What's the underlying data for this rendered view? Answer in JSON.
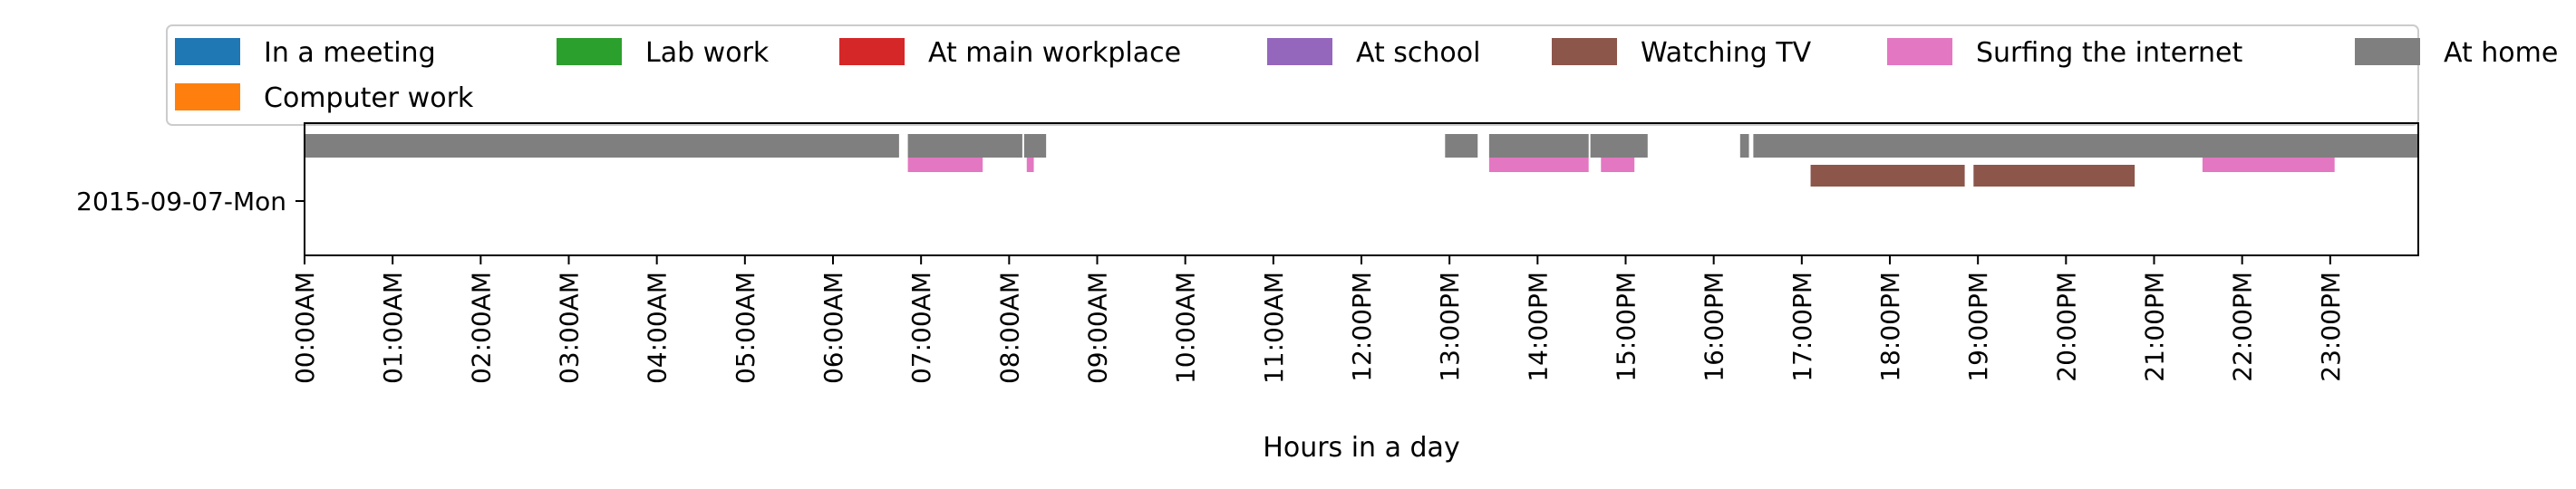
{
  "chart_data": {
    "type": "timeline",
    "title": "",
    "xlabel": "Hours in a day",
    "ylabel": "",
    "xlim": [
      0,
      24
    ],
    "row_label": "2015-09-07-Mon",
    "x_ticks": [
      {
        "value": 0,
        "label": "00:00AM"
      },
      {
        "value": 1,
        "label": "01:00AM"
      },
      {
        "value": 2,
        "label": "02:00AM"
      },
      {
        "value": 3,
        "label": "03:00AM"
      },
      {
        "value": 4,
        "label": "04:00AM"
      },
      {
        "value": 5,
        "label": "05:00AM"
      },
      {
        "value": 6,
        "label": "06:00AM"
      },
      {
        "value": 7,
        "label": "07:00AM"
      },
      {
        "value": 8,
        "label": "08:00AM"
      },
      {
        "value": 9,
        "label": "09:00AM"
      },
      {
        "value": 10,
        "label": "10:00AM"
      },
      {
        "value": 11,
        "label": "11:00AM"
      },
      {
        "value": 12,
        "label": "12:00PM"
      },
      {
        "value": 13,
        "label": "13:00PM"
      },
      {
        "value": 14,
        "label": "14:00PM"
      },
      {
        "value": 15,
        "label": "15:00PM"
      },
      {
        "value": 16,
        "label": "16:00PM"
      },
      {
        "value": 17,
        "label": "17:00PM"
      },
      {
        "value": 18,
        "label": "18:00PM"
      },
      {
        "value": 19,
        "label": "19:00PM"
      },
      {
        "value": 20,
        "label": "20:00PM"
      },
      {
        "value": 21,
        "label": "21:00PM"
      },
      {
        "value": 22,
        "label": "22:00PM"
      },
      {
        "value": 23,
        "label": "23:00PM"
      }
    ],
    "legend_placement": "top",
    "legend": [
      {
        "name": "In a meeting",
        "color": "#1f77b4"
      },
      {
        "name": "Lab work",
        "color": "#2ca02c"
      },
      {
        "name": "At main workplace",
        "color": "#d62728"
      },
      {
        "name": "At school",
        "color": "#9467bd"
      },
      {
        "name": "Watching TV",
        "color": "#8c564b"
      },
      {
        "name": "Surfing the internet",
        "color": "#e377c2"
      },
      {
        "name": "At home",
        "color": "#7f7f7f"
      },
      {
        "name": "Computer work",
        "color": "#ff7f0e"
      }
    ],
    "series": [
      {
        "name": "At home",
        "color": "#7f7f7f",
        "lane": 0,
        "intervals": [
          [
            0.0,
            6.75
          ],
          [
            6.85,
            8.15
          ],
          [
            8.17,
            8.42
          ],
          [
            12.95,
            13.32
          ],
          [
            13.45,
            14.58
          ],
          [
            14.6,
            15.25
          ],
          [
            16.3,
            16.4
          ],
          [
            16.45,
            24.0
          ]
        ]
      },
      {
        "name": "Surfing the internet",
        "color": "#e377c2",
        "lane": 1,
        "intervals": [
          [
            6.85,
            7.7
          ],
          [
            8.2,
            8.28
          ],
          [
            13.45,
            14.58
          ],
          [
            14.72,
            15.1
          ],
          [
            21.55,
            23.05
          ]
        ]
      },
      {
        "name": "Watching TV",
        "color": "#8c564b",
        "lane": 2,
        "intervals": [
          [
            17.1,
            18.85
          ],
          [
            18.95,
            20.78
          ]
        ]
      }
    ]
  }
}
